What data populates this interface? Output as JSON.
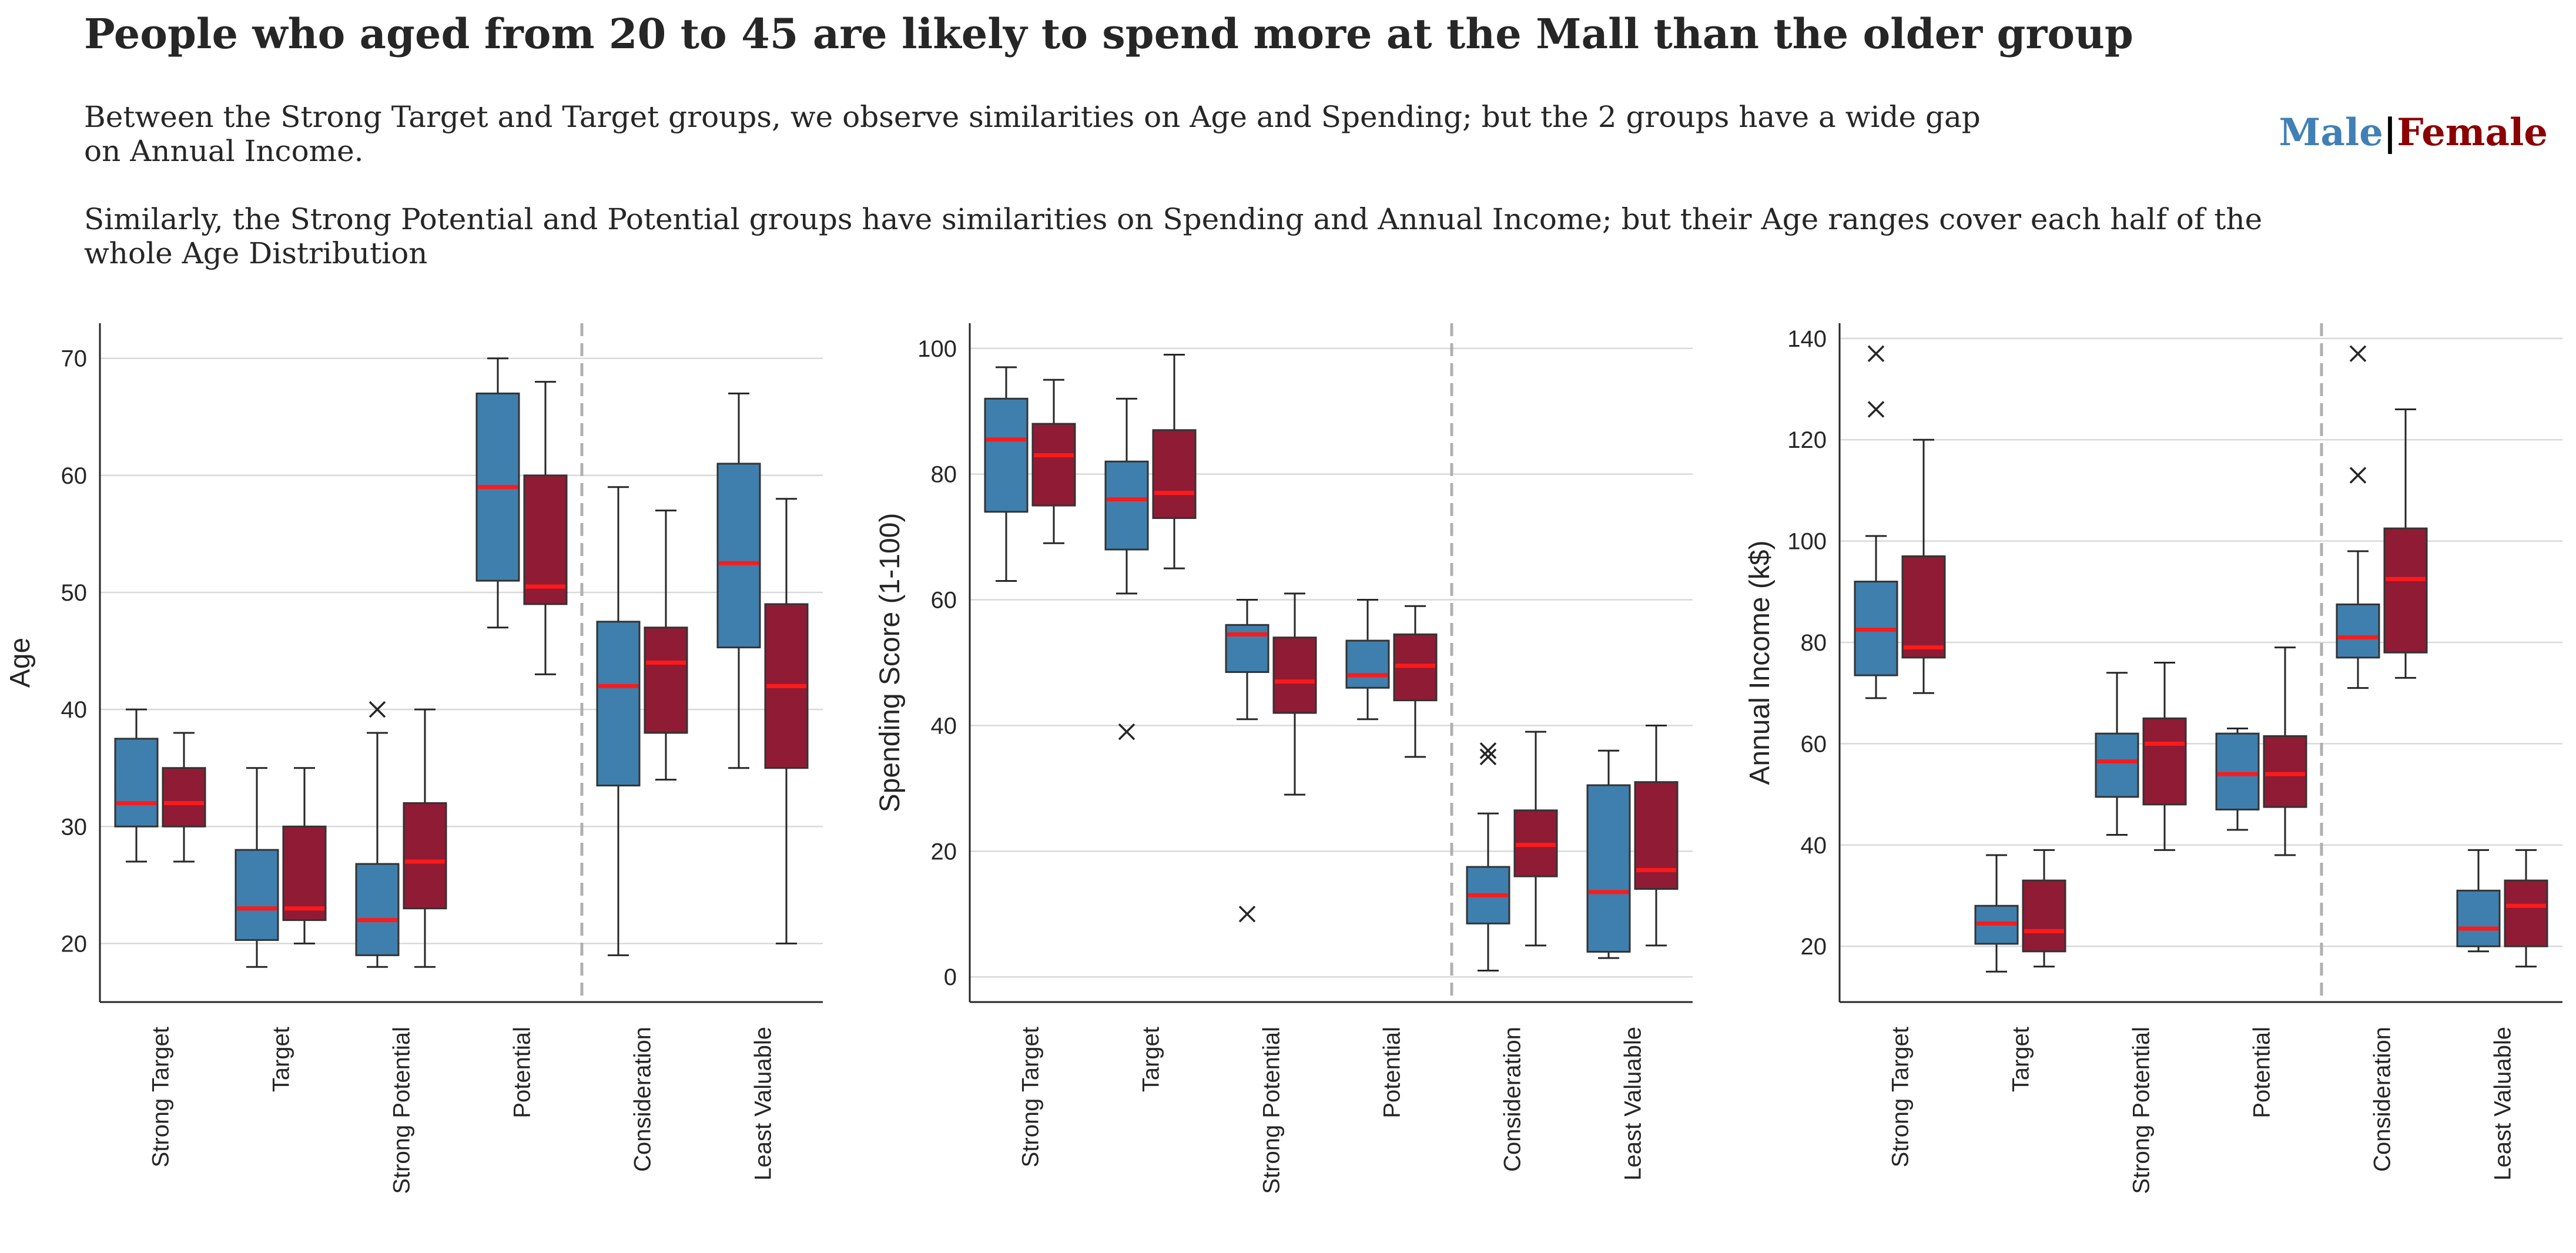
{
  "title": "People who aged from 20 to 45 are likely to spend more at the Mall than the older group",
  "paragraph_1": "Between the Strong Target and Target groups, we observe similarities on Age and Spending; but the 2 groups have a wide gap on Annual Income.",
  "paragraph_2": "Similarly, the Strong Potential and Potential groups have similarities on Spending and Annual Income; but their Age ranges cover each half of the whole Age Distribution",
  "legend": {
    "male": "Male",
    "separator": "|",
    "female": "Female"
  },
  "colors": {
    "male": "#3f7fad",
    "female": "#901b35",
    "median": "#ff1a1a",
    "divider": "#b0b0b0",
    "grid": "#d9d9d9"
  },
  "chart_data": [
    {
      "type": "boxplot",
      "ylabel": "Age",
      "categories": [
        "Strong Target",
        "Target",
        "Strong Potential",
        "Potential",
        "Consideration",
        "Least Valuable"
      ],
      "ylim": [
        15,
        73
      ],
      "yticks": [
        20,
        30,
        40,
        50,
        60,
        70
      ],
      "divider_after": "Potential",
      "series": [
        {
          "name": "Male",
          "boxes": [
            {
              "whislo": 27,
              "q1": 30,
              "med": 32,
              "q3": 37.5,
              "whishi": 40,
              "fliers": []
            },
            {
              "whislo": 18,
              "q1": 20.3,
              "med": 23,
              "q3": 28,
              "whishi": 35,
              "fliers": []
            },
            {
              "whislo": 18,
              "q1": 19,
              "med": 22,
              "q3": 26.8,
              "whishi": 38,
              "fliers": [
                40
              ]
            },
            {
              "whislo": 47,
              "q1": 51,
              "med": 59,
              "q3": 67,
              "whishi": 70,
              "fliers": []
            },
            {
              "whislo": 19,
              "q1": 33.5,
              "med": 42,
              "q3": 47.5,
              "whishi": 59,
              "fliers": []
            },
            {
              "whislo": 35,
              "q1": 45.3,
              "med": 52.5,
              "q3": 61,
              "whishi": 67,
              "fliers": []
            }
          ]
        },
        {
          "name": "Female",
          "boxes": [
            {
              "whislo": 27,
              "q1": 30,
              "med": 32,
              "q3": 35,
              "whishi": 38,
              "fliers": []
            },
            {
              "whislo": 20,
              "q1": 22,
              "med": 23,
              "q3": 30,
              "whishi": 35,
              "fliers": []
            },
            {
              "whislo": 18,
              "q1": 23,
              "med": 27,
              "q3": 32,
              "whishi": 40,
              "fliers": []
            },
            {
              "whislo": 43,
              "q1": 49,
              "med": 50.5,
              "q3": 60,
              "whishi": 68,
              "fliers": []
            },
            {
              "whislo": 34,
              "q1": 38,
              "med": 44,
              "q3": 47,
              "whishi": 57,
              "fliers": []
            },
            {
              "whislo": 20,
              "q1": 35,
              "med": 42,
              "q3": 49,
              "whishi": 58,
              "fliers": []
            }
          ]
        }
      ]
    },
    {
      "type": "boxplot",
      "ylabel": "Spending Score (1-100)",
      "categories": [
        "Strong Target",
        "Target",
        "Strong Potential",
        "Potential",
        "Consideration",
        "Least Valuable"
      ],
      "ylim": [
        -4,
        104
      ],
      "yticks": [
        0,
        20,
        40,
        60,
        80,
        100
      ],
      "divider_after": "Potential",
      "series": [
        {
          "name": "Male",
          "boxes": [
            {
              "whislo": 63,
              "q1": 74,
              "med": 85.5,
              "q3": 92,
              "whishi": 97,
              "fliers": []
            },
            {
              "whislo": 61,
              "q1": 68,
              "med": 76,
              "q3": 82,
              "whishi": 92,
              "fliers": [
                39
              ]
            },
            {
              "whislo": 41,
              "q1": 48.5,
              "med": 54.5,
              "q3": 56,
              "whishi": 60,
              "fliers": [
                10
              ]
            },
            {
              "whislo": 41,
              "q1": 46,
              "med": 48,
              "q3": 53.5,
              "whishi": 60,
              "fliers": []
            },
            {
              "whislo": 1,
              "q1": 8.5,
              "med": 13,
              "q3": 17.5,
              "whishi": 26,
              "fliers": [
                35,
                36
              ]
            },
            {
              "whislo": 3,
              "q1": 4,
              "med": 13.5,
              "q3": 30.5,
              "whishi": 36,
              "fliers": []
            }
          ]
        },
        {
          "name": "Female",
          "boxes": [
            {
              "whislo": 69,
              "q1": 75,
              "med": 83,
              "q3": 88,
              "whishi": 95,
              "fliers": []
            },
            {
              "whislo": 65,
              "q1": 73,
              "med": 77,
              "q3": 87,
              "whishi": 99,
              "fliers": []
            },
            {
              "whislo": 29,
              "q1": 42,
              "med": 47,
              "q3": 54,
              "whishi": 61,
              "fliers": []
            },
            {
              "whislo": 35,
              "q1": 44,
              "med": 49.5,
              "q3": 54.5,
              "whishi": 59,
              "fliers": []
            },
            {
              "whislo": 5,
              "q1": 16,
              "med": 21,
              "q3": 26.5,
              "whishi": 39,
              "fliers": []
            },
            {
              "whislo": 5,
              "q1": 14,
              "med": 17,
              "q3": 31,
              "whishi": 40,
              "fliers": []
            }
          ]
        }
      ]
    },
    {
      "type": "boxplot",
      "ylabel": "Annual Income (k$)",
      "categories": [
        "Strong Target",
        "Target",
        "Strong Potential",
        "Potential",
        "Consideration",
        "Least Valuable"
      ],
      "ylim": [
        9,
        143
      ],
      "yticks": [
        20,
        40,
        60,
        80,
        100,
        120,
        140
      ],
      "divider_after": "Potential",
      "series": [
        {
          "name": "Male",
          "boxes": [
            {
              "whislo": 69,
              "q1": 73.5,
              "med": 82.5,
              "q3": 92,
              "whishi": 101,
              "fliers": [
                126,
                137
              ]
            },
            {
              "whislo": 15,
              "q1": 20.5,
              "med": 24.5,
              "q3": 28,
              "whishi": 38,
              "fliers": []
            },
            {
              "whislo": 42,
              "q1": 49.5,
              "med": 56.5,
              "q3": 62,
              "whishi": 74,
              "fliers": []
            },
            {
              "whislo": 43,
              "q1": 47,
              "med": 54,
              "q3": 62,
              "whishi": 63,
              "fliers": []
            },
            {
              "whislo": 71,
              "q1": 77,
              "med": 81,
              "q3": 87.5,
              "whishi": 98,
              "fliers": [
                113,
                137
              ]
            },
            {
              "whislo": 19,
              "q1": 20,
              "med": 23.5,
              "q3": 31,
              "whishi": 39,
              "fliers": []
            }
          ]
        },
        {
          "name": "Female",
          "boxes": [
            {
              "whislo": 70,
              "q1": 77,
              "med": 79,
              "q3": 97,
              "whishi": 120,
              "fliers": []
            },
            {
              "whislo": 16,
              "q1": 19,
              "med": 23,
              "q3": 33,
              "whishi": 39,
              "fliers": []
            },
            {
              "whislo": 39,
              "q1": 48,
              "med": 60,
              "q3": 65,
              "whishi": 76,
              "fliers": []
            },
            {
              "whislo": 38,
              "q1": 47.5,
              "med": 54,
              "q3": 61.5,
              "whishi": 79,
              "fliers": []
            },
            {
              "whislo": 73,
              "q1": 78,
              "med": 92.5,
              "q3": 102.5,
              "whishi": 126,
              "fliers": []
            },
            {
              "whislo": 16,
              "q1": 20,
              "med": 28,
              "q3": 33,
              "whishi": 39,
              "fliers": []
            }
          ]
        }
      ]
    }
  ]
}
